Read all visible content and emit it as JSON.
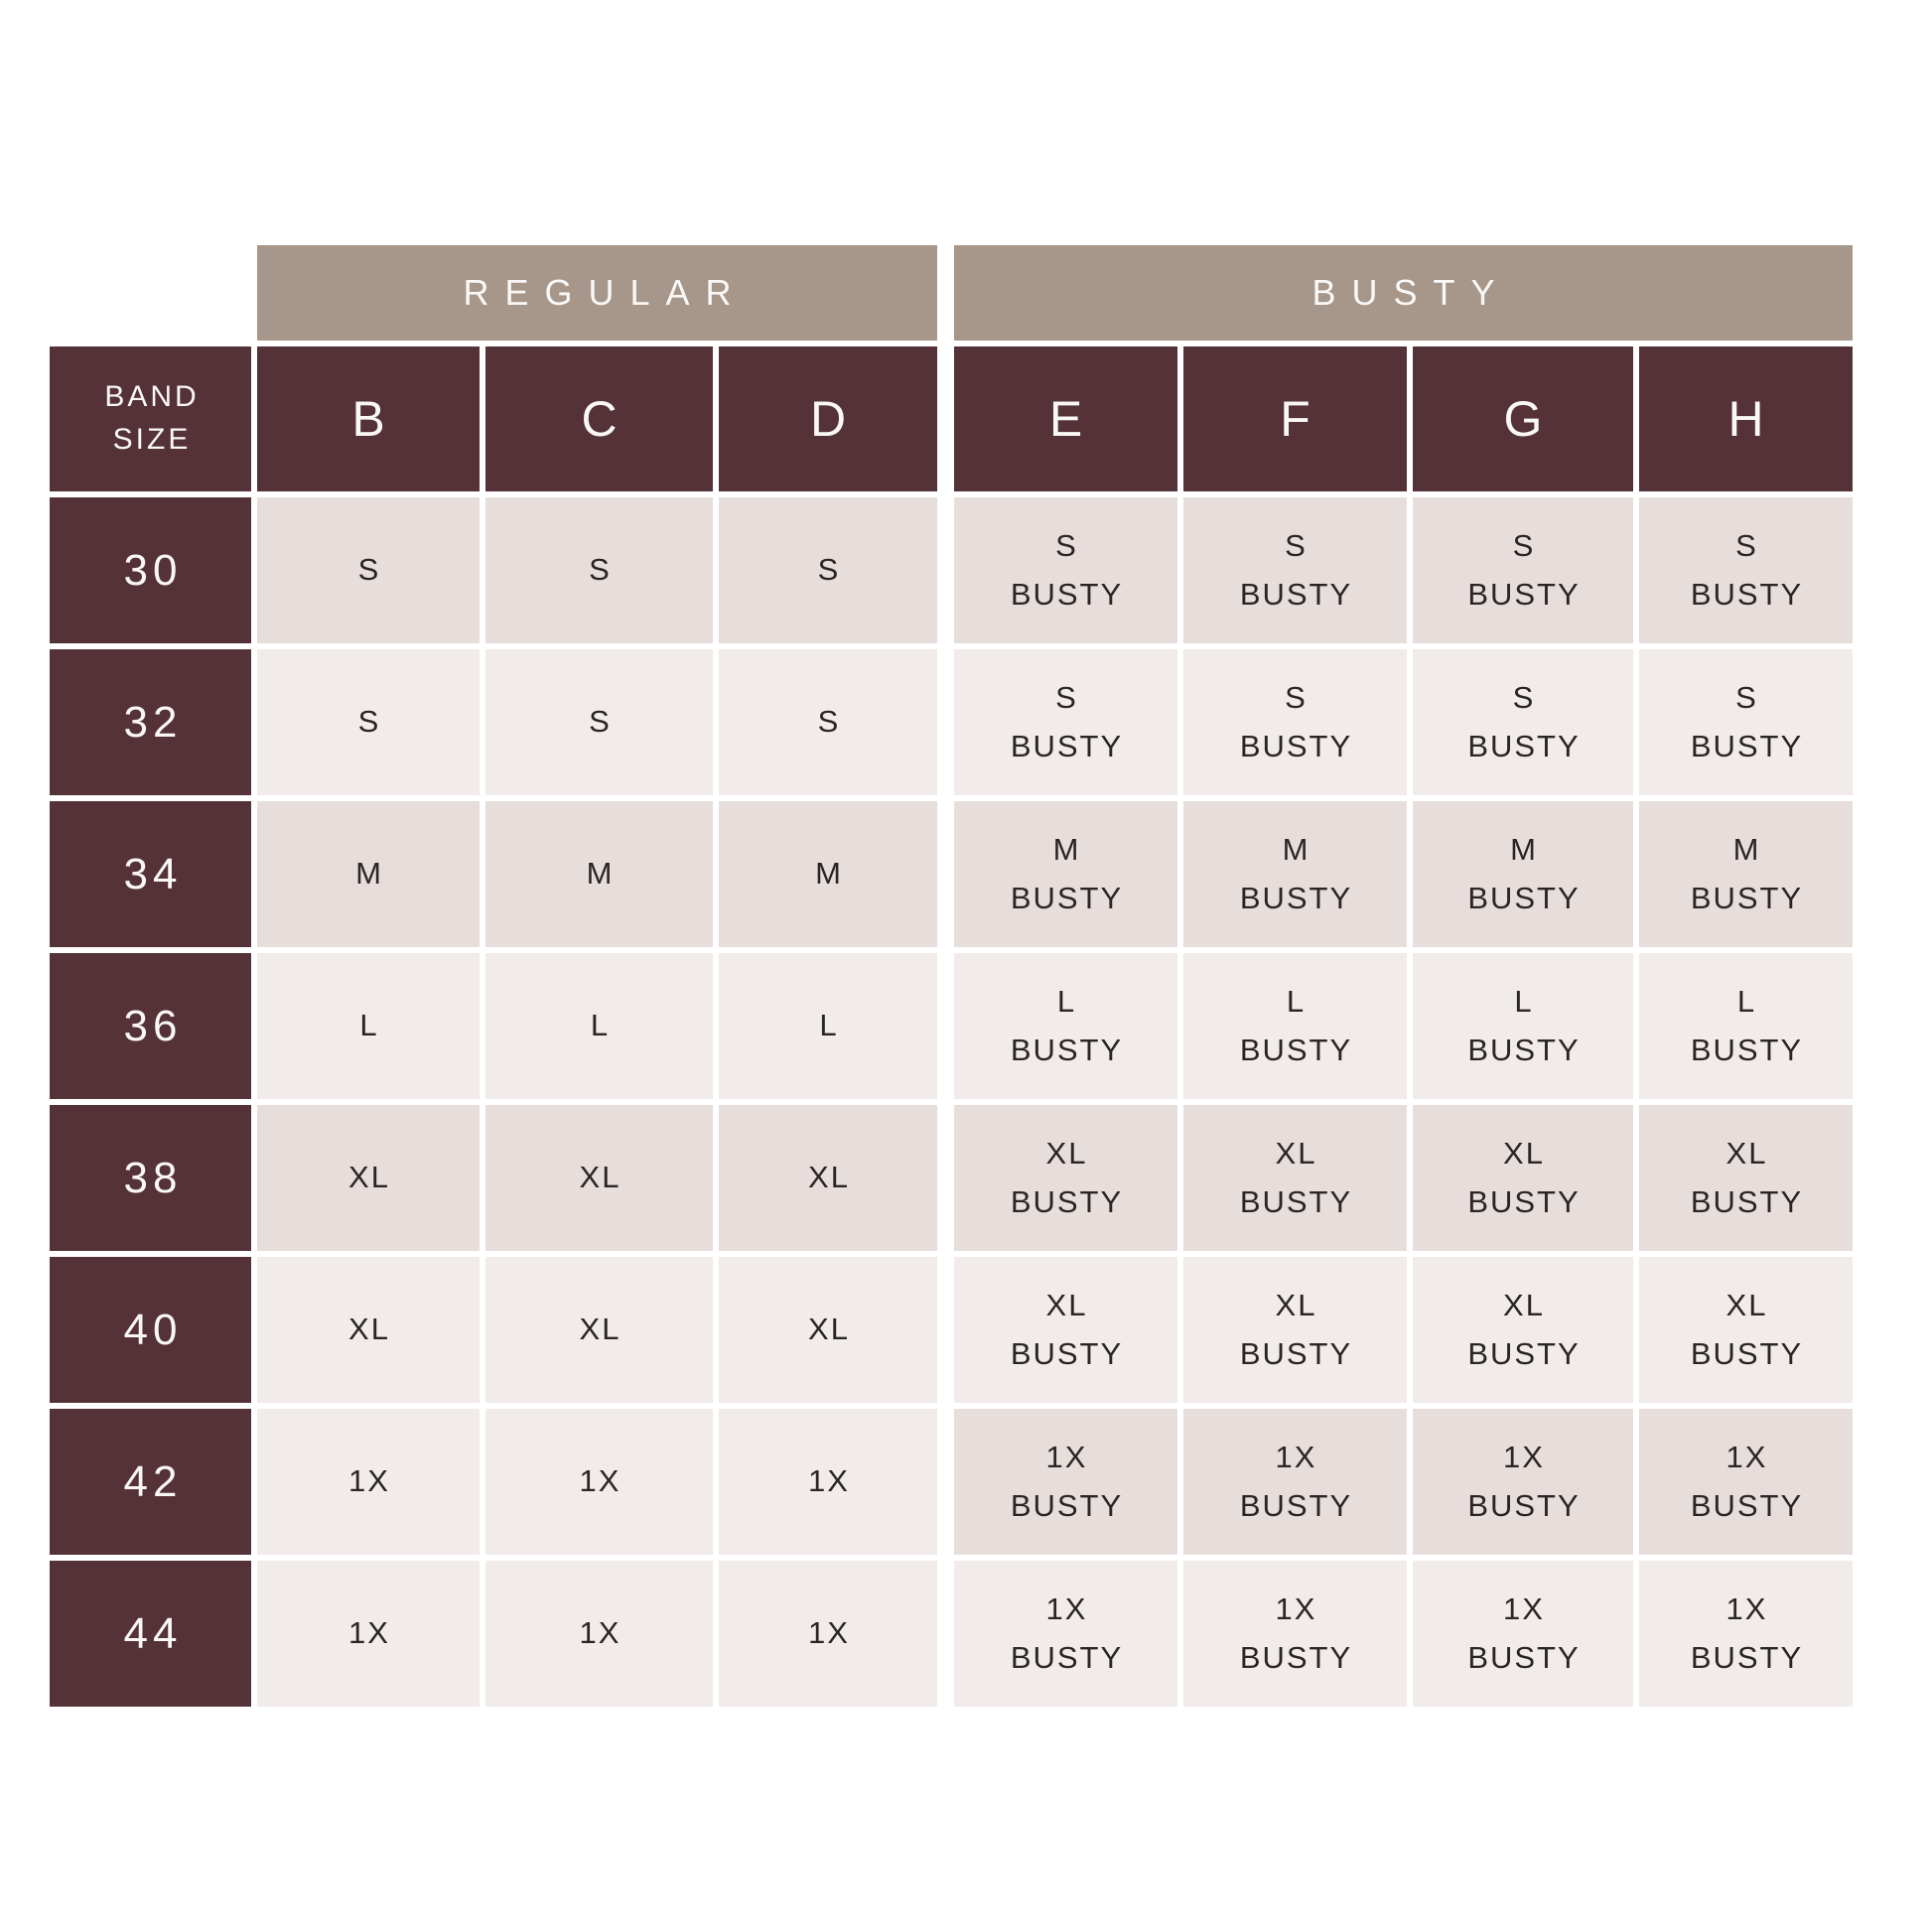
{
  "page": {
    "background": "#ffffff"
  },
  "chart_data": {
    "type": "table",
    "title": "",
    "section_headers": [
      "REGULAR",
      "BUSTY"
    ],
    "corner_header": "BAND SIZE",
    "columns": [
      "B",
      "C",
      "D",
      "E",
      "F",
      "G",
      "H"
    ],
    "row_labels": [
      "30",
      "32",
      "34",
      "36",
      "38",
      "40",
      "42",
      "44"
    ],
    "rows": [
      [
        "S",
        "S",
        "S",
        "S BUSTY",
        "S BUSTY",
        "S BUSTY",
        "S BUSTY"
      ],
      [
        "S",
        "S",
        "S",
        "S BUSTY",
        "S BUSTY",
        "S BUSTY",
        "S BUSTY"
      ],
      [
        "M",
        "M",
        "M",
        "M BUSTY",
        "M BUSTY",
        "M BUSTY",
        "M BUSTY"
      ],
      [
        "L",
        "L",
        "L",
        "L BUSTY",
        "L BUSTY",
        "L BUSTY",
        "L BUSTY"
      ],
      [
        "XL",
        "XL",
        "XL",
        "XL BUSTY",
        "XL BUSTY",
        "XL BUSTY",
        "XL BUSTY"
      ],
      [
        "XL",
        "XL",
        "XL",
        "XL BUSTY",
        "XL BUSTY",
        "XL BUSTY",
        "XL BUSTY"
      ],
      [
        "1X",
        "1X",
        "1X",
        "1X BUSTY",
        "1X BUSTY",
        "1X BUSTY",
        "1X BUSTY"
      ],
      [
        "1X",
        "1X",
        "1X",
        "1X BUSTY",
        "1X BUSTY",
        "1X BUSTY",
        "1X BUSTY"
      ]
    ]
  },
  "table": {
    "section_headers": [
      "REGULAR",
      "BUSTY"
    ],
    "corner_header": {
      "line1": "BAND",
      "line2": "SIZE"
    },
    "cup_columns": [
      "B",
      "C",
      "D",
      "E",
      "F",
      "G",
      "H"
    ],
    "rows": [
      {
        "band": "30",
        "cells": [
          [
            "S"
          ],
          [
            "S"
          ],
          [
            "S"
          ],
          [
            "S",
            "BUSTY"
          ],
          [
            "S",
            "BUSTY"
          ],
          [
            "S",
            "BUSTY"
          ],
          [
            "S",
            "BUSTY"
          ]
        ]
      },
      {
        "band": "32",
        "cells": [
          [
            "S"
          ],
          [
            "S"
          ],
          [
            "S"
          ],
          [
            "S",
            "BUSTY"
          ],
          [
            "S",
            "BUSTY"
          ],
          [
            "S",
            "BUSTY"
          ],
          [
            "S",
            "BUSTY"
          ]
        ]
      },
      {
        "band": "34",
        "cells": [
          [
            "M"
          ],
          [
            "M"
          ],
          [
            "M"
          ],
          [
            "M",
            "BUSTY"
          ],
          [
            "M",
            "BUSTY"
          ],
          [
            "M",
            "BUSTY"
          ],
          [
            "M",
            "BUSTY"
          ]
        ]
      },
      {
        "band": "36",
        "cells": [
          [
            "L"
          ],
          [
            "L"
          ],
          [
            "L"
          ],
          [
            "L",
            "BUSTY"
          ],
          [
            "L",
            "BUSTY"
          ],
          [
            "L",
            "BUSTY"
          ],
          [
            "L",
            "BUSTY"
          ]
        ]
      },
      {
        "band": "38",
        "cells": [
          [
            "XL"
          ],
          [
            "XL"
          ],
          [
            "XL"
          ],
          [
            "XL",
            "BUSTY"
          ],
          [
            "XL",
            "BUSTY"
          ],
          [
            "XL",
            "BUSTY"
          ],
          [
            "XL",
            "BUSTY"
          ]
        ]
      },
      {
        "band": "40",
        "cells": [
          [
            "XL"
          ],
          [
            "XL"
          ],
          [
            "XL"
          ],
          [
            "XL",
            "BUSTY"
          ],
          [
            "XL",
            "BUSTY"
          ],
          [
            "XL",
            "BUSTY"
          ],
          [
            "XL",
            "BUSTY"
          ]
        ]
      },
      {
        "band": "42",
        "cells": [
          [
            "1X"
          ],
          [
            "1X"
          ],
          [
            "1X"
          ],
          [
            "1X",
            "BUSTY"
          ],
          [
            "1X",
            "BUSTY"
          ],
          [
            "1X",
            "BUSTY"
          ],
          [
            "1X",
            "BUSTY"
          ]
        ]
      },
      {
        "band": "44",
        "cells": [
          [
            "1X"
          ],
          [
            "1X"
          ],
          [
            "1X"
          ],
          [
            "1X",
            "BUSTY"
          ],
          [
            "1X",
            "BUSTY"
          ],
          [
            "1X",
            "BUSTY"
          ],
          [
            "1X",
            "BUSTY"
          ]
        ]
      }
    ],
    "colors": {
      "page_bg": "#ffffff",
      "maroon": "#543238",
      "taupe": "#a7968a",
      "cell_light": "#f1ebe9",
      "cell_dark": "#e7dedb",
      "text_dark": "#2a2525",
      "text_light": "#faf8f7"
    }
  }
}
